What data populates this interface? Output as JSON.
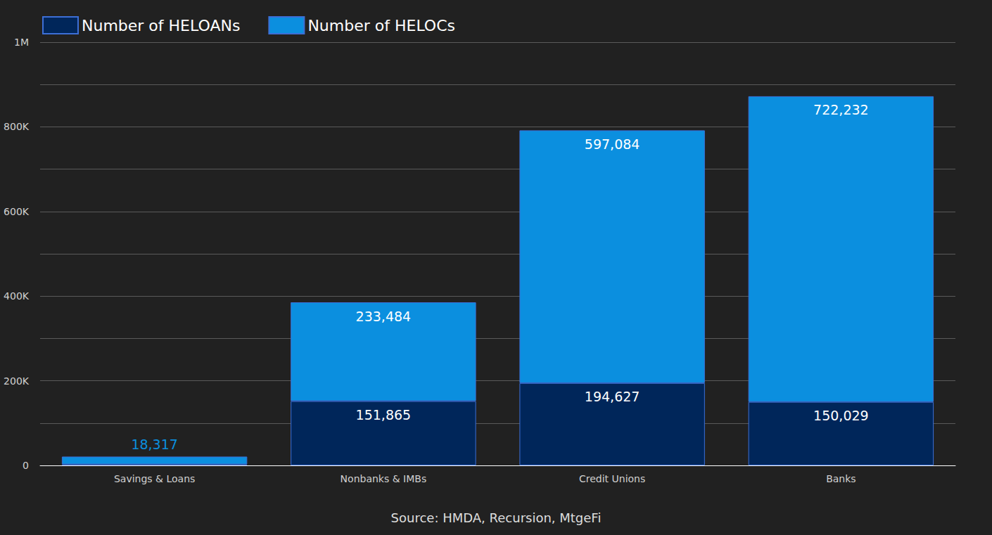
{
  "chart_data": {
    "type": "bar",
    "stacked": true,
    "data_labels": true,
    "legend": "top-left",
    "grid": true,
    "categories": [
      "Savings & Loans",
      "Nonbanks & IMBs",
      "Credit Unions",
      "Banks"
    ],
    "series": [
      {
        "name": "Number of HELOANs",
        "color": "#00265a",
        "values": [
          2500,
          151865,
          194627,
          150029
        ],
        "value_labels": [
          null,
          "151,865",
          "194,627",
          "150,029"
        ]
      },
      {
        "name": "Number of HELOCs",
        "color": "#0b8fdf",
        "values": [
          18317,
          233484,
          597084,
          722232
        ],
        "value_labels": [
          "18,317",
          "233,484",
          "597,084",
          "722,232"
        ]
      }
    ],
    "ylim": [
      0,
      1000000
    ],
    "yticks": [
      0,
      {
        "value": 200000,
        "label": "200K"
      },
      {
        "value": 400000,
        "label": "400K"
      },
      {
        "value": 600000,
        "label": "600K"
      },
      {
        "value": 800000,
        "label": "800K"
      },
      {
        "value": 1000000,
        "label": "1M"
      }
    ],
    "annotations": [
      "Source: HMDA, Recursion, MtgeFi"
    ]
  }
}
